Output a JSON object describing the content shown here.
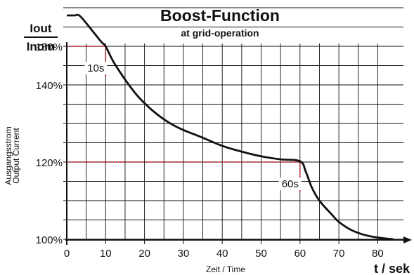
{
  "chart_data": {
    "type": "line",
    "title": "Boost-Function",
    "subtitle": "at grid-operation",
    "y_axis_fraction": {
      "numerator": "Iout",
      "denominator": "Inom"
    },
    "ylabel": [
      "Ausgangsstrom",
      "Output Current"
    ],
    "xlabel": "Zeit / Time",
    "x_unit_label": "t / sek",
    "xlim": [
      0,
      85
    ],
    "ylim": [
      95,
      162
    ],
    "xticks": [
      0,
      10,
      20,
      30,
      40,
      50,
      60,
      70,
      80
    ],
    "yticks": [
      {
        "value": 100,
        "label": "100%"
      },
      {
        "value": 120,
        "label": "120%"
      },
      {
        "value": 140,
        "label": "140%"
      },
      {
        "value": 150,
        "label": "150%"
      }
    ],
    "grid": true,
    "series": [
      {
        "x": [
          0,
          2,
          3.2,
          5,
          7,
          9,
          10,
          12,
          15,
          18,
          21,
          24,
          27,
          30,
          35,
          40,
          45,
          50,
          55,
          60,
          61.5,
          63,
          65,
          68,
          70,
          73,
          76,
          79,
          82,
          84
        ],
        "y": [
          158,
          158,
          158,
          156,
          153.5,
          151,
          150,
          146,
          141.4,
          137.4,
          134.3,
          131.8,
          129.8,
          128.3,
          126.3,
          124.2,
          122.7,
          121.5,
          120.7,
          120.2,
          117.5,
          113.5,
          110,
          106.6,
          104.5,
          102.5,
          101.3,
          100.6,
          100.2,
          100
        ]
      }
    ],
    "annotations": [
      {
        "text": "10s",
        "x": 10,
        "y": 150
      },
      {
        "text": "60s",
        "x": 60,
        "y": 120
      }
    ],
    "reference_lines": [
      {
        "from": [
          0,
          150
        ],
        "corner": [
          10,
          150
        ],
        "to": [
          10,
          142
        ]
      },
      {
        "from": [
          0,
          120
        ],
        "corner": [
          60,
          120
        ],
        "to": [
          60,
          112
        ]
      }
    ],
    "colors": {
      "curve": "#111111",
      "grid": "#111111",
      "reference": "#e8000b"
    }
  }
}
